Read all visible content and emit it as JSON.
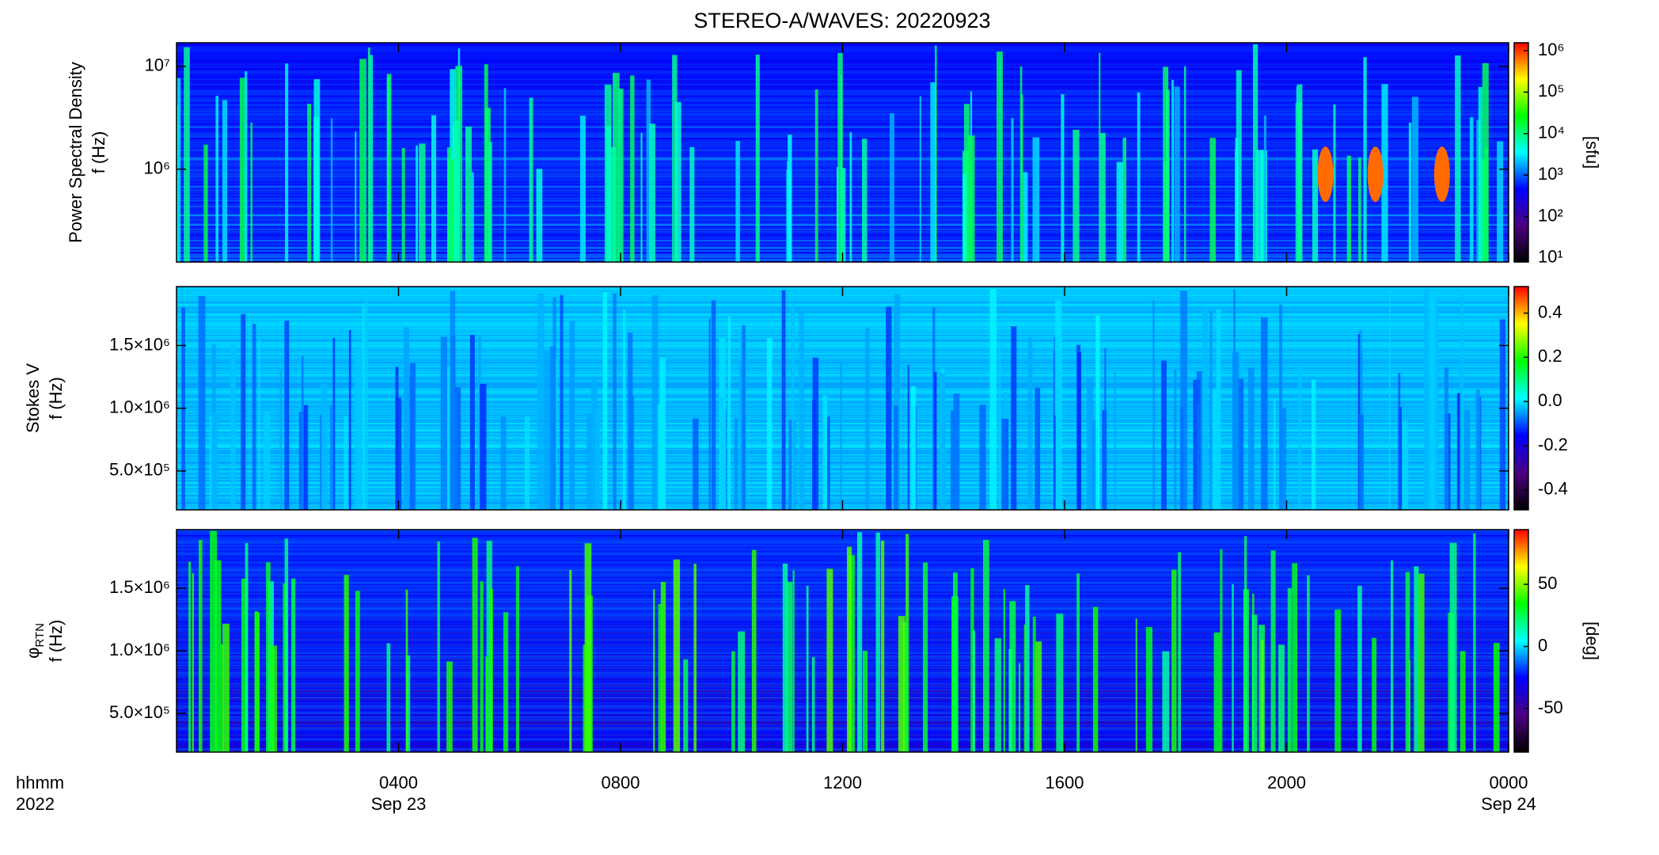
{
  "title": "STEREO-A/WAVES: 20220923",
  "x_axis": {
    "xlim": [
      0,
      24
    ],
    "xticks": [
      {
        "value": 4,
        "label": "0400"
      },
      {
        "value": 8,
        "label": "0800"
      },
      {
        "value": 12,
        "label": "1200"
      },
      {
        "value": 16,
        "label": "1600"
      },
      {
        "value": 20,
        "label": "2000"
      },
      {
        "value": 24,
        "label": "0000"
      }
    ],
    "dates": [
      {
        "value": 4,
        "label": "Sep 23"
      },
      {
        "value": 24,
        "label": "Sep 24"
      }
    ],
    "label": [
      "hhmm",
      "2022"
    ]
  },
  "chart_data": [
    {
      "type": "spectrogram",
      "ylabel": [
        "Power Spectral Density",
        "f (Hz)"
      ],
      "log_y": true,
      "ylim": [
        125000,
        17000000
      ],
      "yticks": [
        {
          "value": 1000000,
          "label": "10⁶"
        },
        {
          "value": 10000000,
          "label": "10⁷"
        }
      ],
      "colorbar": {
        "log": true,
        "lim": [
          8,
          1550000
        ],
        "label": "[sfu]",
        "ticks": [
          {
            "value": 10,
            "label": "10¹"
          },
          {
            "value": 100,
            "label": "10²"
          },
          {
            "value": 1000,
            "label": "10³"
          },
          {
            "value": 10000,
            "label": "10⁴"
          },
          {
            "value": 100000,
            "label": "10⁵"
          },
          {
            "value": 1000000,
            "label": "10⁶"
          }
        ],
        "colors": [
          "#000000",
          "#4b0082",
          "#0000ff",
          "#00ffff",
          "#00ff00",
          "#ffff00",
          "#ff0000"
        ]
      }
    },
    {
      "type": "spectrogram",
      "ylabel": [
        "Stokes V",
        "f (Hz)"
      ],
      "log_y": false,
      "ylim": [
        190000,
        1970000
      ],
      "yticks": [
        {
          "value": 500000,
          "label": "5.0×10⁵"
        },
        {
          "value": 1000000,
          "label": "1.0×10⁶"
        },
        {
          "value": 1500000,
          "label": "1.5×10⁶"
        }
      ],
      "colorbar": {
        "log": false,
        "lim": [
          -0.49,
          0.52
        ],
        "ticks": [
          -0.4,
          -0.2,
          {
            "value": 0,
            "label": "0.0"
          },
          0.2,
          0.4
        ],
        "colors": [
          "#000000",
          "#4b0082",
          "#0000ff",
          "#00ffff",
          "#00ff00",
          "#ffff00",
          "#ff0000"
        ]
      }
    },
    {
      "type": "spectrogram",
      "ylabel": [
        "φ",
        "f (Hz)"
      ],
      "ylabel_sub": "RTN",
      "log_y": false,
      "ylim": [
        190000,
        1970000
      ],
      "yticks": [
        {
          "value": 500000,
          "label": "5.0×10⁵"
        },
        {
          "value": 1000000,
          "label": "1.0×10⁶"
        },
        {
          "value": 1500000,
          "label": "1.5×10⁶"
        }
      ],
      "colorbar": {
        "log": false,
        "lim": [
          -85,
          94
        ],
        "label": "[deg]",
        "ticks": [
          -50,
          0,
          50
        ],
        "colors": [
          "#000000",
          "#4b0082",
          "#0000ff",
          "#00ffff",
          "#00ff00",
          "#ffff00",
          "#ff0000"
        ]
      }
    }
  ]
}
